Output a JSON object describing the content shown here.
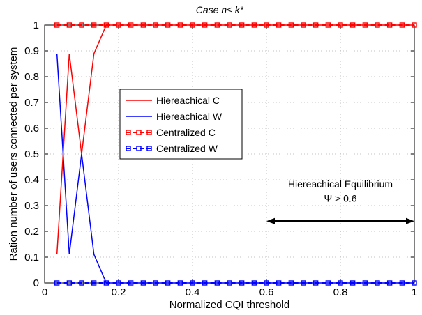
{
  "chart_data": {
    "type": "line",
    "title": "Case n≤ k*",
    "xlabel": "Normalized CQI threshold",
    "ylabel": "Ration number of users connected per system",
    "xlim": [
      0,
      1
    ],
    "ylim": [
      0,
      1
    ],
    "xticks": [
      0,
      0.2,
      0.4,
      0.6,
      0.8,
      1
    ],
    "xtick_labels": [
      "0",
      "0.2",
      "0.4",
      "0.6",
      "0.8",
      "1"
    ],
    "yticks": [
      0,
      0.1,
      0.2,
      0.3,
      0.4,
      0.5,
      0.6,
      0.7,
      0.8,
      0.9,
      1
    ],
    "ytick_labels": [
      "0",
      "0.1",
      "0.2",
      "0.3",
      "0.4",
      "0.5",
      "0.6",
      "0.7",
      "0.8",
      "0.9",
      "1"
    ],
    "grid": true,
    "legend_position": "center-left",
    "series": [
      {
        "name": "Hiereachical C",
        "color": "#ff0000",
        "style": "solid",
        "marker": "none",
        "x": [
          0.0333,
          0.0667,
          0.1,
          0.1333,
          0.1667,
          0.2,
          1.0
        ],
        "y": [
          0.111,
          0.889,
          0.5,
          0.889,
          1.0,
          1.0,
          1.0
        ]
      },
      {
        "name": "Hiereachical W",
        "color": "#0000ff",
        "style": "solid",
        "marker": "none",
        "x": [
          0.0333,
          0.0667,
          0.1,
          0.1333,
          0.1667,
          0.2,
          1.0
        ],
        "y": [
          0.889,
          0.111,
          0.5,
          0.111,
          0.0,
          0.0,
          0.0
        ]
      },
      {
        "name": "Centralized C",
        "color": "#ff0000",
        "style": "dashed",
        "marker": "square",
        "x": [
          0.0333,
          0.0667,
          0.1,
          0.1333,
          0.1667,
          0.2,
          0.2333,
          0.2667,
          0.3,
          0.3333,
          0.3667,
          0.4,
          0.4333,
          0.4667,
          0.5,
          0.5333,
          0.5667,
          0.6,
          0.6333,
          0.6667,
          0.7,
          0.7333,
          0.7667,
          0.8,
          0.8333,
          0.8667,
          0.9,
          0.9333,
          0.9667,
          1.0
        ],
        "y": [
          1,
          1,
          1,
          1,
          1,
          1,
          1,
          1,
          1,
          1,
          1,
          1,
          1,
          1,
          1,
          1,
          1,
          1,
          1,
          1,
          1,
          1,
          1,
          1,
          1,
          1,
          1,
          1,
          1,
          1
        ]
      },
      {
        "name": "Centralized W",
        "color": "#0000ff",
        "style": "dashed",
        "marker": "square",
        "x": [
          0.0333,
          0.0667,
          0.1,
          0.1333,
          0.1667,
          0.2,
          0.2333,
          0.2667,
          0.3,
          0.3333,
          0.3667,
          0.4,
          0.4333,
          0.4667,
          0.5,
          0.5333,
          0.5667,
          0.6,
          0.6333,
          0.6667,
          0.7,
          0.7333,
          0.7667,
          0.8,
          0.8333,
          0.8667,
          0.9,
          0.9333,
          0.9667,
          1.0
        ],
        "y": [
          0,
          0,
          0,
          0,
          0,
          0,
          0,
          0,
          0,
          0,
          0,
          0,
          0,
          0,
          0,
          0,
          0,
          0,
          0,
          0,
          0,
          0,
          0,
          0,
          0,
          0,
          0,
          0,
          0,
          0
        ]
      }
    ],
    "annotations": [
      {
        "type": "text",
        "lines": [
          "Hiereachical Equilibrium",
          "Ψ > 0.6"
        ],
        "x": 0.8,
        "y": [
          0.37,
          0.315
        ]
      },
      {
        "type": "double-arrow",
        "x_from": 0.6,
        "x_to": 1.0,
        "y": 0.24
      }
    ]
  }
}
